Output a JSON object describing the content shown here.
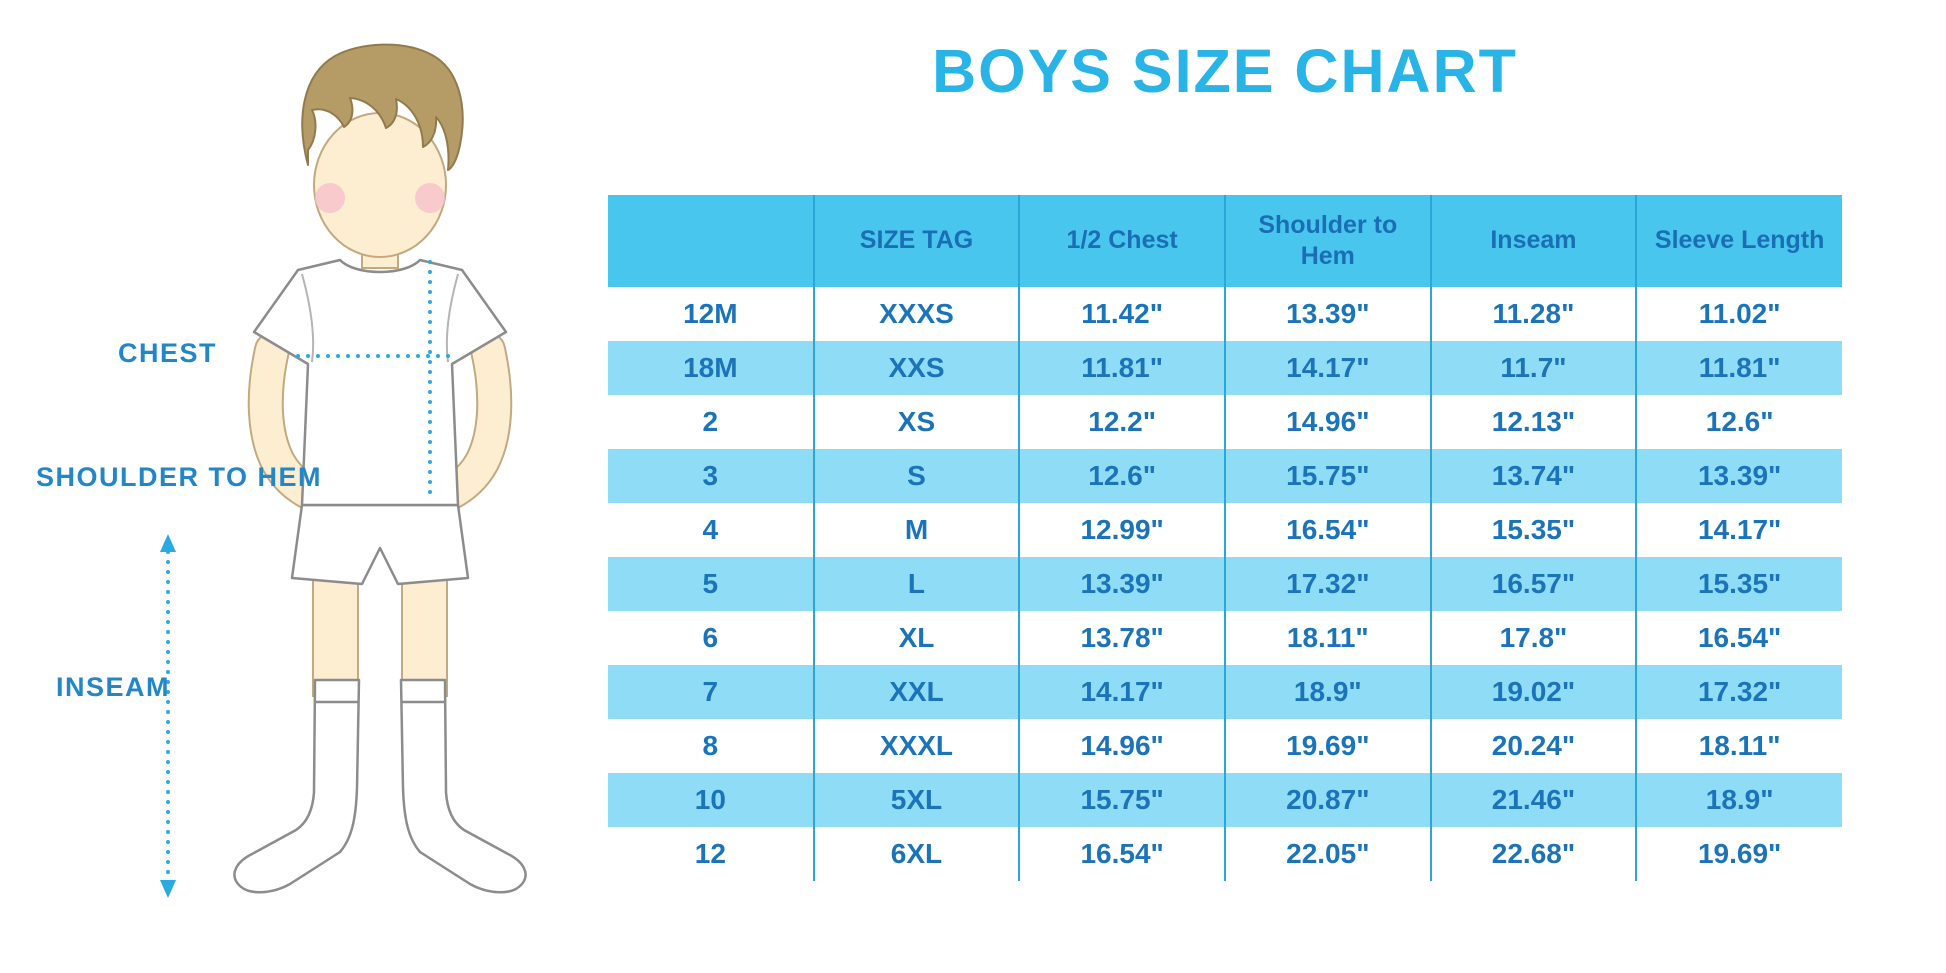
{
  "title": "BOYS SIZE CHART",
  "colors": {
    "title_cyan": "#29b4e8",
    "header_bg": "#49c6ed",
    "row_alt_bg": "#8edcf5",
    "table_text": "#1b74ba",
    "column_divider": "#2ba6d6",
    "label_blue": "#2286c7",
    "dotted_measure_line": "#29abe2",
    "hair_brown": "#b59b66",
    "skin": "#fdeed2",
    "cheek_pink": "#f7c3cb"
  },
  "diagram": {
    "labels": {
      "chest": "CHEST",
      "shoulder_to_hem": "SHOULDER TO HEM",
      "inseam": "INSEAM"
    }
  },
  "chart_data": {
    "type": "table",
    "title": "BOYS SIZE CHART",
    "columns": [
      "",
      "SIZE TAG",
      "1/2 Chest",
      "Shoulder to Hem",
      "Inseam",
      "Sleeve Length"
    ],
    "rows": [
      [
        "12M",
        "XXXS",
        "11.42\"",
        "13.39\"",
        "11.28\"",
        "11.02\""
      ],
      [
        "18M",
        "XXS",
        "11.81\"",
        "14.17\"",
        "11.7\"",
        "11.81\""
      ],
      [
        "2",
        "XS",
        "12.2\"",
        "14.96\"",
        "12.13\"",
        "12.6\""
      ],
      [
        "3",
        "S",
        "12.6\"",
        "15.75\"",
        "13.74\"",
        "13.39\""
      ],
      [
        "4",
        "M",
        "12.99\"",
        "16.54\"",
        "15.35\"",
        "14.17\""
      ],
      [
        "5",
        "L",
        "13.39\"",
        "17.32\"",
        "16.57\"",
        "15.35\""
      ],
      [
        "6",
        "XL",
        "13.78\"",
        "18.11\"",
        "17.8\"",
        "16.54\""
      ],
      [
        "7",
        "XXL",
        "14.17\"",
        "18.9\"",
        "19.02\"",
        "17.32\""
      ],
      [
        "8",
        "XXXL",
        "14.96\"",
        "19.69\"",
        "20.24\"",
        "18.11\""
      ],
      [
        "10",
        "5XL",
        "15.75\"",
        "20.87\"",
        "21.46\"",
        "18.9\""
      ],
      [
        "12",
        "6XL",
        "16.54\"",
        "22.05\"",
        "22.68\"",
        "19.69\""
      ]
    ]
  }
}
